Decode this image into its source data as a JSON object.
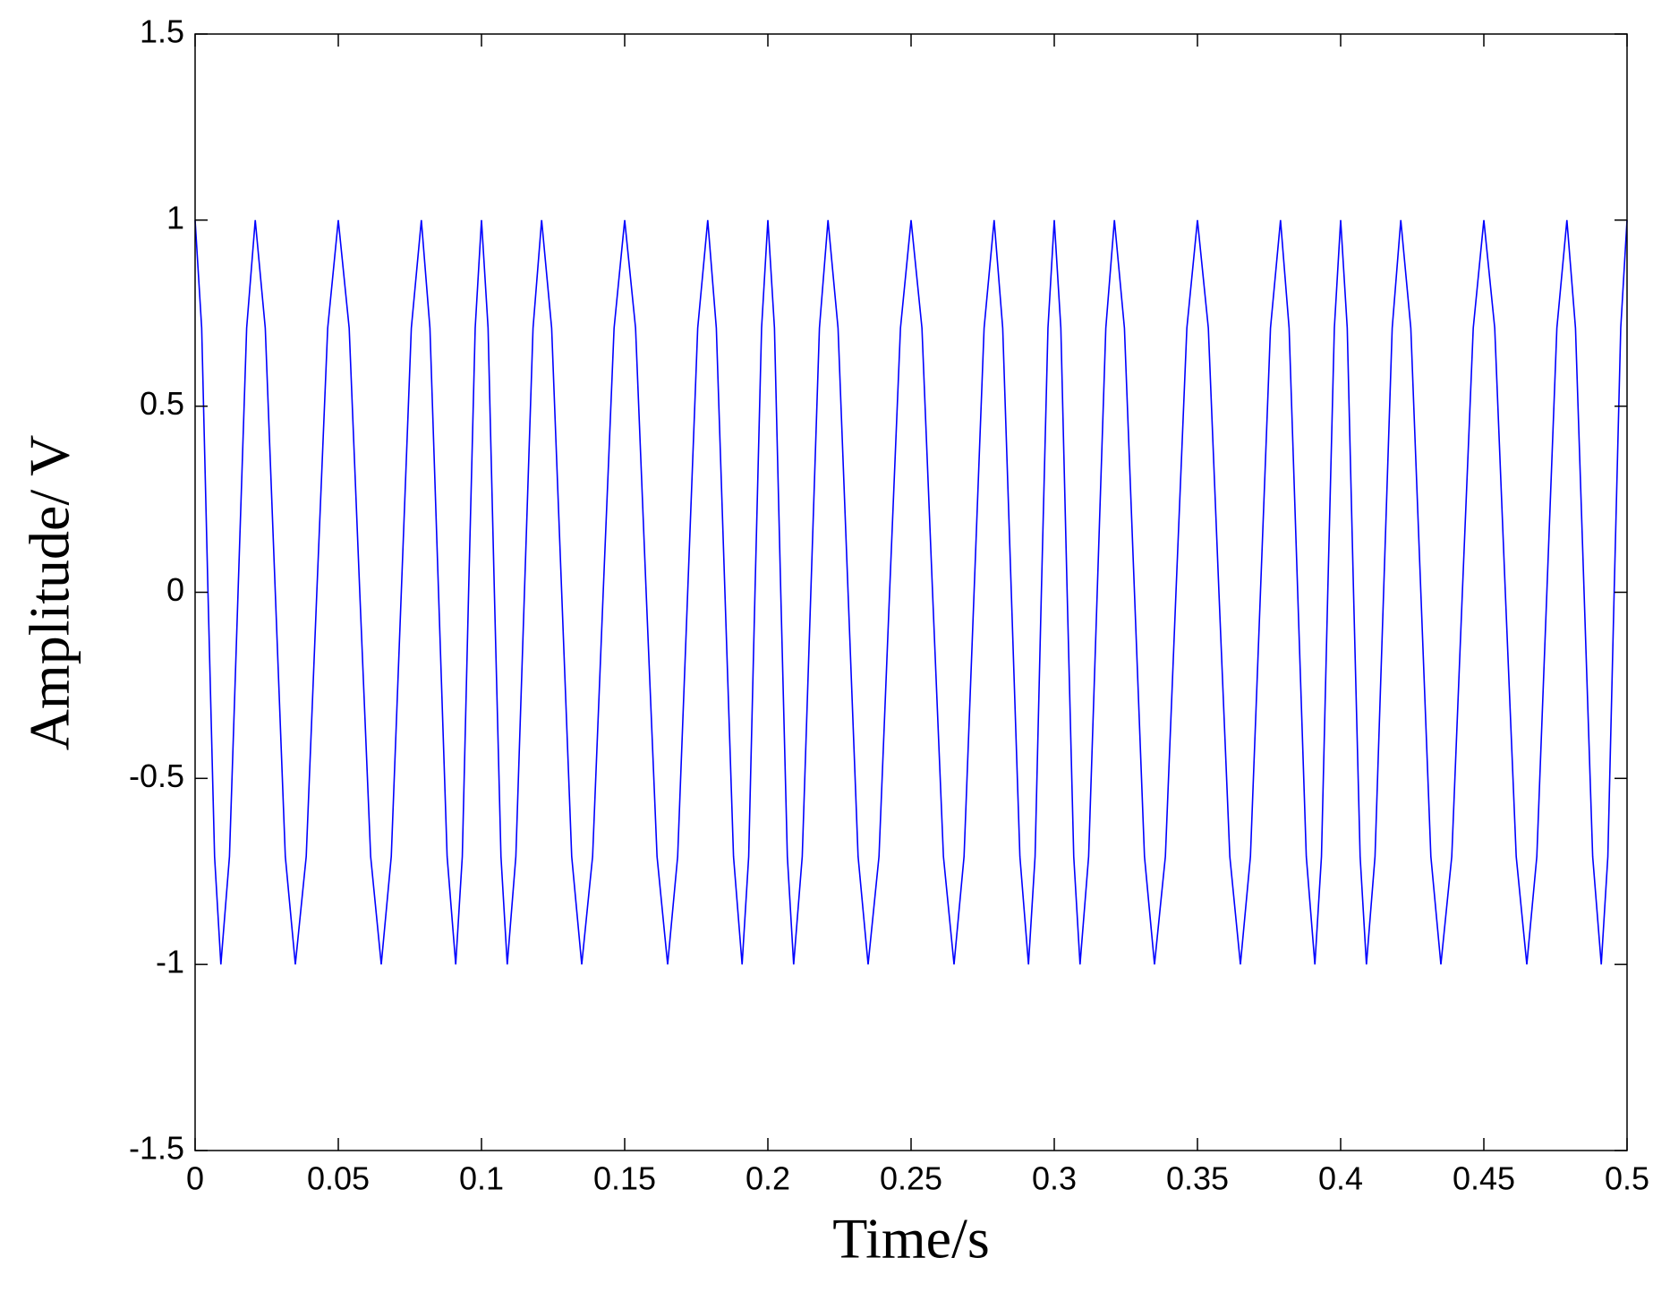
{
  "chart_data": {
    "type": "line",
    "xlabel": "Time/s",
    "ylabel": "Amplitude/ V",
    "color": "#0000ff",
    "xlim": [
      0,
      0.5
    ],
    "ylim": [
      -1.5,
      1.5
    ],
    "xticks": [
      0,
      0.05,
      0.1,
      0.15,
      0.2,
      0.25,
      0.3,
      0.35,
      0.4,
      0.45,
      0.5
    ],
    "yticks": [
      -1.5,
      -1,
      -0.5,
      0,
      0.5,
      1,
      1.5
    ],
    "grid": false,
    "x": [
      0,
      0.0023,
      0.0045,
      0.0068,
      0.009,
      0.012,
      0.015,
      0.018,
      0.021,
      0.0245,
      0.028,
      0.0315,
      0.035,
      0.0388,
      0.0425,
      0.0463,
      0.05,
      0.0538,
      0.0575,
      0.0613,
      0.065,
      0.0685,
      0.072,
      0.0755,
      0.079,
      0.082,
      0.085,
      0.088,
      0.091,
      0.0933,
      0.0955,
      0.0978,
      0.1,
      0.1023,
      0.1045,
      0.1068,
      0.109,
      0.112,
      0.115,
      0.118,
      0.121,
      0.1245,
      0.128,
      0.1315,
      0.135,
      0.1388,
      0.1425,
      0.1463,
      0.15,
      0.1538,
      0.1575,
      0.1613,
      0.165,
      0.1685,
      0.172,
      0.1755,
      0.179,
      0.182,
      0.185,
      0.188,
      0.191,
      0.1933,
      0.1955,
      0.1978,
      0.2,
      0.2023,
      0.2045,
      0.2068,
      0.209,
      0.212,
      0.215,
      0.218,
      0.221,
      0.2245,
      0.228,
      0.2315,
      0.235,
      0.2388,
      0.2425,
      0.2463,
      0.25,
      0.2538,
      0.2575,
      0.2613,
      0.265,
      0.2685,
      0.272,
      0.2755,
      0.279,
      0.282,
      0.285,
      0.288,
      0.291,
      0.2933,
      0.2955,
      0.2978,
      0.3,
      0.3023,
      0.3045,
      0.3068,
      0.309,
      0.312,
      0.315,
      0.318,
      0.321,
      0.3245,
      0.328,
      0.3315,
      0.335,
      0.3388,
      0.3425,
      0.3463,
      0.35,
      0.3538,
      0.3575,
      0.3613,
      0.365,
      0.3685,
      0.372,
      0.3755,
      0.379,
      0.382,
      0.385,
      0.388,
      0.391,
      0.3933,
      0.3955,
      0.3978,
      0.4,
      0.4023,
      0.4045,
      0.4068,
      0.409,
      0.412,
      0.415,
      0.418,
      0.421,
      0.4245,
      0.428,
      0.4315,
      0.435,
      0.4388,
      0.4425,
      0.4463,
      0.45,
      0.4538,
      0.4575,
      0.4613,
      0.465,
      0.4685,
      0.472,
      0.4755,
      0.479,
      0.482,
      0.485,
      0.488,
      0.491,
      0.4933,
      0.4955,
      0.4978,
      0.5
    ],
    "values": [
      1,
      0.71,
      0,
      -0.71,
      -1,
      -0.71,
      0,
      0.71,
      1,
      0.71,
      0,
      -0.71,
      -1,
      -0.71,
      0,
      0.71,
      1,
      0.71,
      0,
      -0.71,
      -1,
      -0.71,
      0,
      0.71,
      1,
      0.71,
      0,
      -0.71,
      -1,
      -0.71,
      0,
      0.71,
      1,
      0.71,
      0,
      -0.71,
      -1,
      -0.71,
      0,
      0.71,
      1,
      0.71,
      0,
      -0.71,
      -1,
      -0.71,
      0,
      0.71,
      1,
      0.71,
      0,
      -0.71,
      -1,
      -0.71,
      0,
      0.71,
      1,
      0.71,
      0,
      -0.71,
      -1,
      -0.71,
      0,
      0.71,
      1,
      0.71,
      0,
      -0.71,
      -1,
      -0.71,
      0,
      0.71,
      1,
      0.71,
      0,
      -0.71,
      -1,
      -0.71,
      0,
      0.71,
      1,
      0.71,
      0,
      -0.71,
      -1,
      -0.71,
      0,
      0.71,
      1,
      0.71,
      0,
      -0.71,
      -1,
      -0.71,
      0,
      0.71,
      1,
      0.71,
      0,
      -0.71,
      -1,
      -0.71,
      0,
      0.71,
      1,
      0.71,
      0,
      -0.71,
      -1,
      -0.71,
      0,
      0.71,
      1,
      0.71,
      0,
      -0.71,
      -1,
      -0.71,
      0,
      0.71,
      1,
      0.71,
      0,
      -0.71,
      -1,
      -0.71,
      0,
      0.71,
      1,
      0.71,
      0,
      -0.71,
      -1,
      -0.71,
      0,
      0.71,
      1,
      0.71,
      0,
      -0.71,
      -1,
      -0.71,
      0,
      0.71,
      1,
      0.71,
      0,
      -0.71,
      -1,
      -0.71,
      0,
      0.71,
      1,
      0.71,
      0,
      -0.71,
      -1,
      -0.71,
      0,
      0.71,
      1
    ]
  }
}
